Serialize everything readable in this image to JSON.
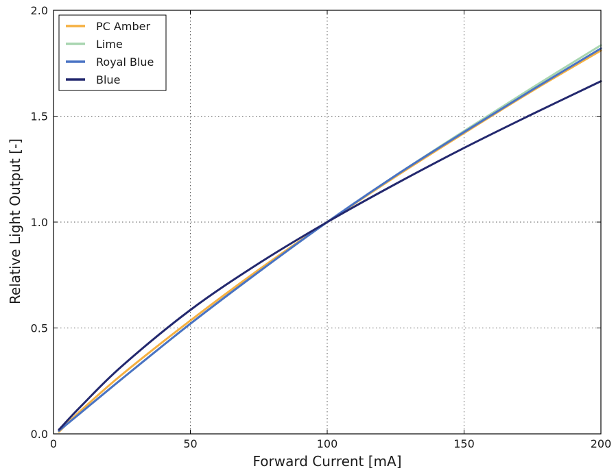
{
  "chart_data": {
    "type": "line",
    "title": "",
    "xlabel": "Forward Current [mA]",
    "ylabel": "Relative Light Output [-]",
    "xlim": [
      0,
      200
    ],
    "ylim": [
      0.0,
      2.0
    ],
    "xticks": [
      0,
      50,
      100,
      150,
      200
    ],
    "xtick_labels": [
      "0",
      "50",
      "100",
      "150",
      "200"
    ],
    "yticks": [
      0.0,
      0.5,
      1.0,
      1.5,
      2.0
    ],
    "ytick_labels": [
      "0.0",
      "0.5",
      "1.0",
      "1.5",
      "2.0"
    ],
    "grid": true,
    "legend_position": "top-left",
    "series": [
      {
        "name": "PC Amber",
        "color": "#f5b041",
        "x": [
          2,
          10,
          25,
          50,
          75,
          100,
          125,
          150,
          175,
          200
        ],
        "y": [
          0.01,
          0.11,
          0.28,
          0.535,
          0.775,
          1.0,
          1.215,
          1.42,
          1.62,
          1.81
        ]
      },
      {
        "name": "Lime",
        "color": "#a8d5b0",
        "x": [
          2,
          10,
          25,
          50,
          75,
          100,
          125,
          150,
          175,
          200
        ],
        "y": [
          0.015,
          0.1,
          0.26,
          0.52,
          0.765,
          1.0,
          1.22,
          1.43,
          1.635,
          1.835
        ]
      },
      {
        "name": "Royal Blue",
        "color": "#4a73c4",
        "x": [
          2,
          10,
          25,
          50,
          75,
          100,
          125,
          150,
          175,
          200
        ],
        "y": [
          0.015,
          0.1,
          0.26,
          0.52,
          0.765,
          1.0,
          1.22,
          1.425,
          1.625,
          1.82
        ]
      },
      {
        "name": "Blue",
        "color": "#23286e",
        "x": [
          2,
          10,
          25,
          50,
          75,
          100,
          125,
          150,
          175,
          200
        ],
        "y": [
          0.02,
          0.13,
          0.32,
          0.585,
          0.805,
          1.0,
          1.18,
          1.35,
          1.51,
          1.665
        ]
      }
    ]
  }
}
